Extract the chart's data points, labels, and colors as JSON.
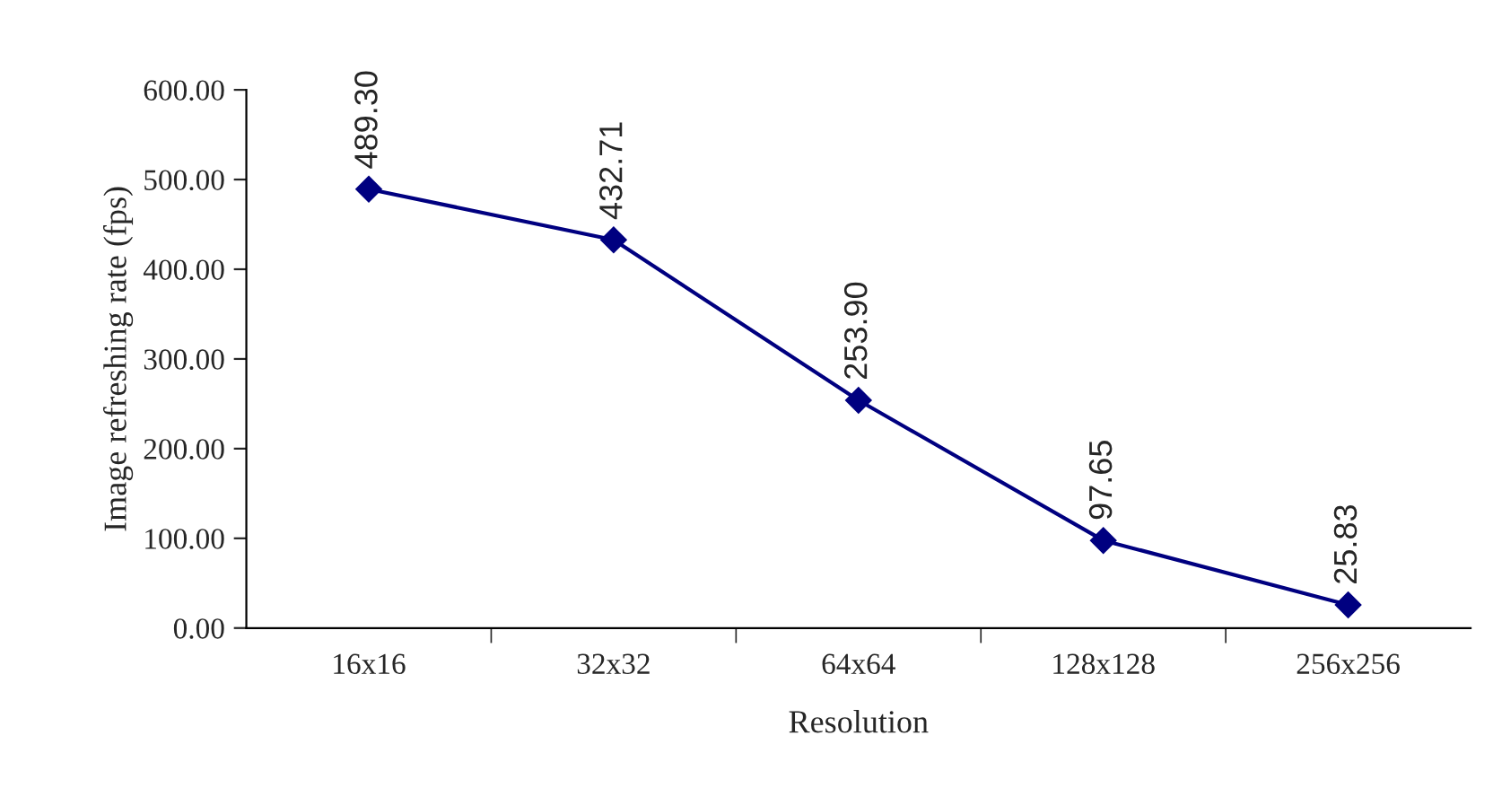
{
  "chart_data": {
    "type": "line",
    "xlabel": "Resolution",
    "ylabel": "Image refreshing rate (fps)",
    "categories": [
      "16x16",
      "32x32",
      "64x64",
      "128x128",
      "256x256"
    ],
    "series": [
      {
        "color": "#000080",
        "values": [
          489.3,
          432.71,
          253.9,
          97.65,
          25.83
        ],
        "value_labels": [
          "489.30",
          "432.71",
          "253.90",
          "97.65",
          "25.83"
        ]
      }
    ],
    "ylim": [
      0,
      600
    ],
    "yticks": [
      {
        "value": 0,
        "label": "0.00"
      },
      {
        "value": 100,
        "label": "100.00"
      },
      {
        "value": 200,
        "label": "200.00"
      },
      {
        "value": 300,
        "label": "300.00"
      },
      {
        "value": 400,
        "label": "400.00"
      },
      {
        "value": 500,
        "label": "500.00"
      },
      {
        "value": 600,
        "label": "600.00"
      }
    ],
    "grid": false,
    "legend": false,
    "marker": "diamond",
    "line_style": "solid"
  }
}
